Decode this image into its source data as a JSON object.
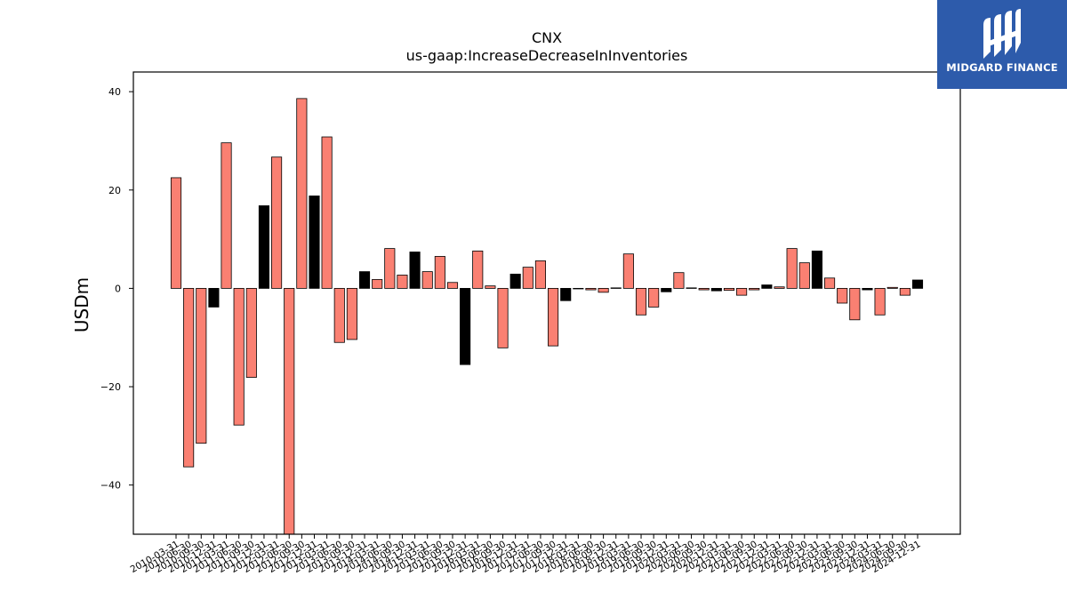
{
  "chart_data": {
    "type": "bar",
    "title": "CNX",
    "subtitle": "us-gaap:IncreaseDecreaseInInventories",
    "xlabel": "",
    "ylabel": "USDm",
    "ylim": [
      -50,
      44
    ],
    "yticks": [
      -40,
      -20,
      0,
      20,
      40
    ],
    "grid": false,
    "legend": "none",
    "colors": {
      "positive_change": "#fa8072",
      "negative_change": "#000000",
      "edge": "#000000"
    },
    "x": [
      "2010-03-31",
      "2010-06-30",
      "2010-09-30",
      "2010-12-31",
      "2011-03-31",
      "2011-06-30",
      "2011-09-30",
      "2011-12-31",
      "2012-03-31",
      "2012-06-30",
      "2012-09-30",
      "2012-12-31",
      "2013-03-31",
      "2013-06-30",
      "2013-09-30",
      "2013-12-31",
      "2014-03-31",
      "2014-06-30",
      "2014-09-30",
      "2014-12-31",
      "2015-03-31",
      "2015-06-30",
      "2015-09-30",
      "2015-12-31",
      "2016-03-31",
      "2016-06-30",
      "2016-09-30",
      "2016-12-31",
      "2017-03-31",
      "2017-06-30",
      "2017-09-30",
      "2017-12-31",
      "2018-03-31",
      "2018-06-30",
      "2018-09-30",
      "2018-12-31",
      "2019-03-31",
      "2019-06-30",
      "2019-09-30",
      "2019-12-31",
      "2020-03-31",
      "2020-06-30",
      "2020-09-30",
      "2020-12-31",
      "2021-03-31",
      "2021-06-30",
      "2021-09-30",
      "2021-12-31",
      "2022-03-31",
      "2022-06-30",
      "2022-09-30",
      "2022-12-31",
      "2023-03-31",
      "2023-06-30",
      "2023-09-30",
      "2023-12-31",
      "2024-03-31",
      "2024-06-30",
      "2024-09-30",
      "2024-12-31"
    ],
    "x_tick_labels": [
      "2010-03-31",
      "2010-06-30",
      "2010-09-30",
      "2010-12-31",
      "2011-03-31",
      "2011-06-30",
      "2011-09-30",
      "2011-12-31",
      "2012-03-31",
      "2012-06-30",
      "2012-09-30",
      "2012-12-31",
      "2013-03-31",
      "2013-06-30",
      "2013-09-30",
      "2013-12-31",
      "2014-03-31",
      "2014-06-30",
      "2014-09-30",
      "2014-12-31",
      "2015-03-31",
      "2015-06-30",
      "2015-09-30",
      "2015-12-31",
      "2016-03-31",
      "2016-06-30",
      "2016-09-30",
      "2016-12-31",
      "2017-03-31",
      "2017-06-30",
      "2017-09-30",
      "2017-12-31",
      "2018-03-31",
      "2018-06-30",
      "2018-09-30",
      "2018-12-31",
      "2019-03-31",
      "2019-06-30",
      "2019-09-30",
      "2019-12-31",
      "2020-03-31",
      "2020-06-30",
      "2020-09-30",
      "2020-12-31",
      "2021-03-31",
      "2021-06-30",
      "2021-09-30",
      "2021-12-31",
      "2022-03-31",
      "2022-06-30",
      "2022-09-30",
      "2022-12-31",
      "2023-03-31",
      "2023-06-30",
      "2023-09-30",
      "2023-12-31",
      "2024-03-31",
      "2024-06-30",
      "2024-09-30",
      "2024-12-31"
    ],
    "values": [
      22.5,
      -36.3,
      -31.5,
      -3.8,
      29.6,
      -27.8,
      -18.1,
      16.8,
      26.7,
      -50.0,
      38.6,
      18.8,
      30.8,
      -11.0,
      -10.4,
      3.4,
      1.8,
      8.1,
      2.7,
      7.4,
      3.4,
      6.5,
      1.2,
      -15.5,
      7.6,
      0.5,
      -12.1,
      2.9,
      4.3,
      5.6,
      -11.7,
      -2.5,
      -0.1,
      -0.3,
      -0.8,
      0.1,
      7.0,
      -5.4,
      -3.8,
      -0.7,
      3.2,
      0.1,
      -0.3,
      -0.5,
      -0.4,
      -1.4,
      -0.3,
      0.7,
      0.3,
      8.1,
      5.2,
      7.6,
      2.1,
      -3.0,
      -6.4,
      -0.3,
      -5.4,
      0.2,
      -1.4,
      1.7
    ],
    "bar_colors": [
      "#fa8072",
      "#fa8072",
      "#fa8072",
      "#000000",
      "#fa8072",
      "#fa8072",
      "#fa8072",
      "#000000",
      "#fa8072",
      "#fa8072",
      "#fa8072",
      "#000000",
      "#fa8072",
      "#fa8072",
      "#fa8072",
      "#000000",
      "#fa8072",
      "#fa8072",
      "#fa8072",
      "#000000",
      "#fa8072",
      "#fa8072",
      "#fa8072",
      "#000000",
      "#fa8072",
      "#fa8072",
      "#fa8072",
      "#000000",
      "#fa8072",
      "#fa8072",
      "#fa8072",
      "#000000",
      "#fa8072",
      "#fa8072",
      "#fa8072",
      "#000000",
      "#fa8072",
      "#fa8072",
      "#fa8072",
      "#000000",
      "#fa8072",
      "#fa8072",
      "#fa8072",
      "#000000",
      "#fa8072",
      "#fa8072",
      "#fa8072",
      "#000000",
      "#fa8072",
      "#fa8072",
      "#fa8072",
      "#000000",
      "#fa8072",
      "#fa8072",
      "#fa8072",
      "#000000",
      "#fa8072",
      "#fa8072",
      "#fa8072",
      "#000000"
    ]
  },
  "watermark": {
    "brand": "MIDGARD FINANCE",
    "background": "#2d5bab",
    "icon": "midgard-logo-mark"
  }
}
